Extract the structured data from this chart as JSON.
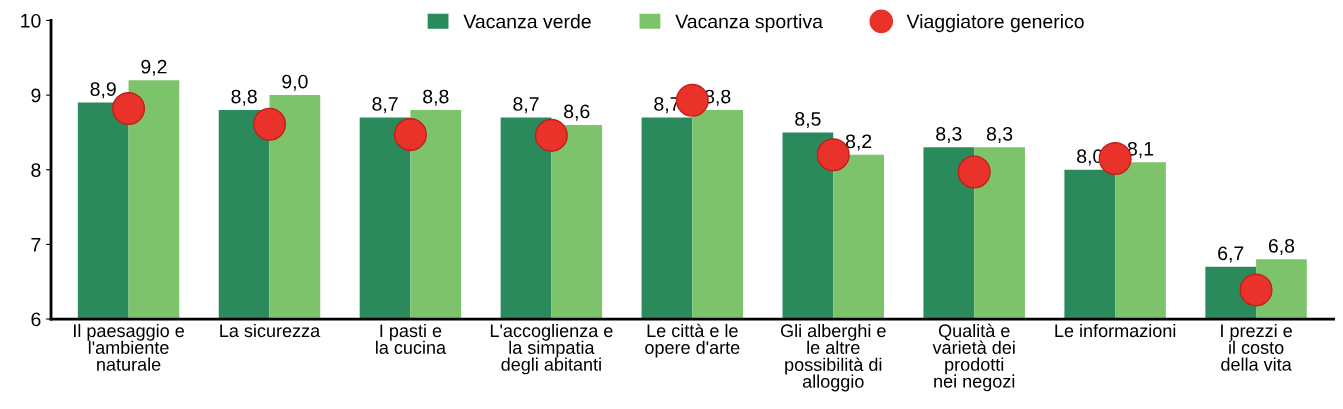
{
  "chart_data": {
    "type": "bar",
    "categories": [
      "Il paesaggio e\nl'ambiente\nnaturale",
      "La sicurezza",
      "I pasti e\nla cucina",
      "L'accoglienza e\nla simpatia\ndegli abitanti",
      "Le città e le\nopere d'arte",
      "Gli alberghi e\nle altre\npossibilità di\nalloggio",
      "Qualità e\nvarietà dei\nprodotti\nnei negozi",
      "Le informazioni",
      "I prezzi e\nil costo\ndella vita"
    ],
    "series": [
      {
        "name": "Vacanza verde",
        "color": "#2a8a5c",
        "values": [
          8.9,
          8.8,
          8.7,
          8.7,
          8.7,
          8.5,
          8.3,
          8.0,
          6.7
        ],
        "value_labels": [
          "8,9",
          "8,8",
          "8,7",
          "8,7",
          "8,7",
          "8,5",
          "8,3",
          "8,0",
          "6,7"
        ]
      },
      {
        "name": "Vacanza sportiva",
        "color": "#7dc36b",
        "values": [
          9.2,
          9.0,
          8.8,
          8.6,
          8.8,
          8.2,
          8.3,
          8.1,
          6.8
        ],
        "value_labels": [
          "9,2",
          "9,0",
          "8,8",
          "8,6",
          "8,8",
          "8,2",
          "8,3",
          "8,1",
          "6,8"
        ]
      },
      {
        "name": "Viaggiatore generico",
        "type": "scatter",
        "color": "#e8322a",
        "marker": "circle",
        "values": [
          8.82,
          8.61,
          8.47,
          8.46,
          8.93,
          8.2,
          7.97,
          8.15,
          6.39
        ]
      }
    ],
    "ylim": [
      6,
      10
    ],
    "yticks": [
      6,
      7,
      8,
      9,
      10
    ],
    "grid": false,
    "legend": "top"
  }
}
